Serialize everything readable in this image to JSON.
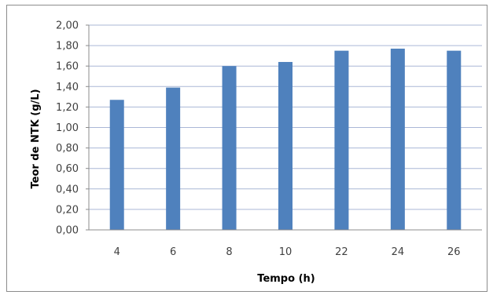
{
  "chart_data": {
    "type": "bar",
    "title": "",
    "xlabel": "Tempo (h)",
    "ylabel": "Teor de NTK (g/L)",
    "categories": [
      "4",
      "6",
      "8",
      "10",
      "22",
      "24",
      "26"
    ],
    "values": [
      1.27,
      1.39,
      1.6,
      1.64,
      1.75,
      1.77,
      1.75
    ],
    "ylim": [
      0,
      2.0
    ],
    "yticks": [
      "0,00",
      "0,20",
      "0,40",
      "0,60",
      "0,80",
      "1,00",
      "1,20",
      "1,40",
      "1,60",
      "1,80",
      "2,00"
    ],
    "grid": true,
    "legend": "none",
    "colors": {
      "bar": "#4f81bd",
      "gridline": "#aab7d6",
      "axis": "#8c8c8c",
      "frame": "#8c8c8c"
    }
  }
}
